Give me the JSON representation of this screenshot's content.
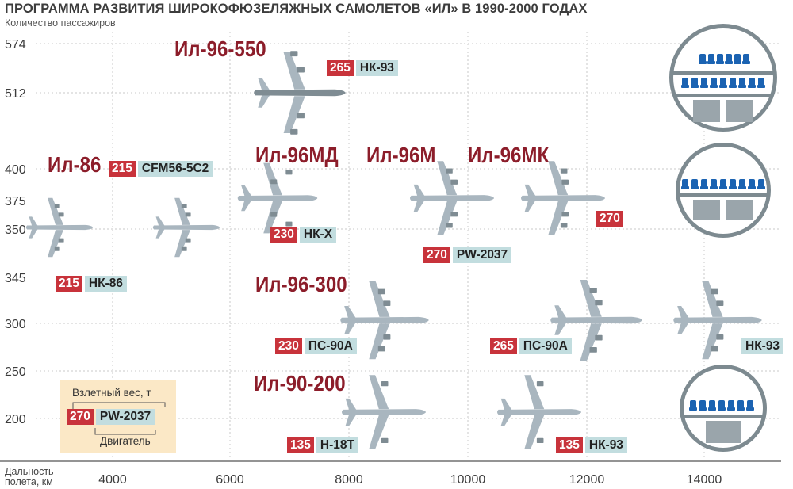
{
  "title": "ПРОГРАММА РАЗВИТИЯ ШИРОКОФЮЗЕЛЯЖНЫХ САМОЛЕТОВ «ИЛ» В 1990-2000 ГОДАХ",
  "colors": {
    "plane": "#a9b6bf",
    "plane_dark": "#7f8c93",
    "weight_bg": "#c8333b",
    "engine_bg": "#c2dddf",
    "model": "#8c1d2a",
    "legend_bg": "#fbe8c6",
    "seat": "#1b63b2",
    "circle": "#7d8a90"
  },
  "chart_data": {
    "type": "scatter",
    "title": "ПРОГРАММА РАЗВИТИЯ ШИРОКОФЮЗЕЛЯЖНЫХ САМОЛЕТОВ «ИЛ» В 1990-2000 ГОДАХ",
    "ylabel": "Количество пассажиров",
    "xlabel": "Дальность полета, км",
    "x_ticks": [
      "4000",
      "6000",
      "8000",
      "10000",
      "12000",
      "14000"
    ],
    "y_ticks": [
      "574",
      "512",
      "400",
      "375",
      "350",
      "345",
      "300",
      "250",
      "200"
    ],
    "grid": true,
    "points": [
      {
        "model": "Ил-86",
        "range_km": 4000,
        "passengers": 350,
        "weight": "215",
        "engine": "НК-86"
      },
      {
        "model": "Ил-86",
        "range_km": 5000,
        "passengers": 350,
        "weight": "215",
        "engine": "CFM56-5C2"
      },
      {
        "model": "Ил-96МД",
        "range_km": 6800,
        "passengers": 375,
        "weight": "230",
        "engine": "НК-Х"
      },
      {
        "model": "Ил-96-550",
        "range_km": 7300,
        "passengers": 512,
        "weight": "265",
        "engine": "НК-93"
      },
      {
        "model": "Ил-96М",
        "range_km": 10000,
        "passengers": 375,
        "weight": "270",
        "engine": "PW-2037"
      },
      {
        "model": "Ил-96МК",
        "range_km": 11800,
        "passengers": 375,
        "weight": "270",
        "engine": ""
      },
      {
        "model": "Ил-96-300",
        "range_km": 8500,
        "passengers": 300,
        "weight": "230",
        "engine": "ПС-90А"
      },
      {
        "model": "Ил-96-300",
        "range_km": 12200,
        "passengers": 300,
        "weight": "265",
        "engine": "ПС-90А"
      },
      {
        "model": "Ил-96-300",
        "range_km": 14200,
        "passengers": 300,
        "weight": "",
        "engine": "НК-93"
      },
      {
        "model": "Ил-90-200",
        "range_km": 8600,
        "passengers": 200,
        "weight": "135",
        "engine": "Н-18Т"
      },
      {
        "model": "Ил-90-200",
        "range_km": 10900,
        "passengers": 200,
        "weight": "135",
        "engine": "НК-93"
      }
    ]
  },
  "models": {
    "il86": "Ил-86",
    "il96_550": "Ил-96-550",
    "il96md": "Ил-96МД",
    "il96m": "Ил-96М",
    "il96mk": "Ил-96МК",
    "il96_300": "Ил-96-300",
    "il90_200": "Ил-90-200"
  },
  "tags": {
    "t550": {
      "w": "265",
      "e": "НК-93"
    },
    "t86a": {
      "w": "215",
      "e": "CFM56-5C2"
    },
    "t86b": {
      "w": "215",
      "e": "НК-86"
    },
    "tmd": {
      "w": "230",
      "e": "НК-Х"
    },
    "tm": {
      "w": "270",
      "e": "PW-2037"
    },
    "tmk": {
      "w": "270"
    },
    "t300a": {
      "w": "230",
      "e": "ПС-90А"
    },
    "t300b": {
      "w": "265",
      "e": "ПС-90А"
    },
    "t300c": {
      "e": "НК-93"
    },
    "t200a": {
      "w": "135",
      "e": "Н-18Т"
    },
    "t200b": {
      "w": "135",
      "e": "НК-93"
    }
  },
  "legend": {
    "weight_label": "Взлетный вес, т",
    "engine_label": "Двигатель",
    "w": "270",
    "e": "PW-2037"
  }
}
